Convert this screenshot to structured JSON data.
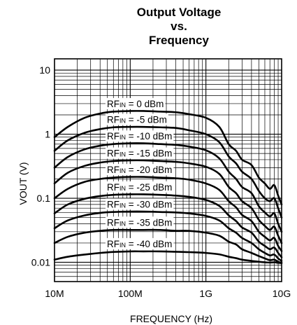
{
  "chart_data": {
    "type": "line",
    "title_lines": [
      "Output Voltage",
      "vs.",
      "Frequency"
    ],
    "xlabel": "FREQUENCY (Hz)",
    "ylabel": "VOUT (V)",
    "x_scale": "log",
    "y_scale": "log",
    "xlim": [
      10000000,
      10000000000
    ],
    "ylim": [
      0.005,
      15
    ],
    "x_ticks": [
      {
        "value": 10000000,
        "label": "10M"
      },
      {
        "value": 100000000,
        "label": "100M"
      },
      {
        "value": 1000000000,
        "label": "1G"
      },
      {
        "value": 10000000000,
        "label": "10G"
      }
    ],
    "y_ticks": [
      {
        "value": 0.01,
        "label": "0.01"
      },
      {
        "value": 0.1,
        "label": "0.1"
      },
      {
        "value": 1,
        "label": "1"
      },
      {
        "value": 10,
        "label": "10"
      }
    ],
    "grid": true,
    "x": [
      10000000,
      15000000,
      25000000,
      40000000,
      60000000,
      100000000,
      150000000,
      250000000,
      400000000,
      600000000,
      1000000000,
      1500000000,
      2000000000,
      2500000000,
      3000000000,
      4000000000,
      5000000000,
      6000000000,
      7000000000,
      8000000000,
      9000000000,
      10000000000
    ],
    "series": [
      {
        "name": "RF_IN = 0 dBm",
        "label_prefix": "RF",
        "label_sub": "IN",
        "label_suffix": " = 0 dBm",
        "values": [
          0.9,
          1.3,
          1.8,
          2.1,
          2.25,
          2.3,
          2.3,
          2.25,
          2.2,
          2.05,
          1.8,
          1.3,
          0.7,
          0.55,
          0.4,
          0.33,
          0.21,
          0.17,
          0.14,
          0.16,
          0.11,
          0.08
        ]
      },
      {
        "name": "RF_IN = -5 dBm",
        "label_prefix": "RF",
        "label_sub": "IN",
        "label_suffix": " = -5 dBm",
        "values": [
          0.55,
          0.8,
          1.05,
          1.2,
          1.28,
          1.3,
          1.3,
          1.28,
          1.25,
          1.15,
          1.0,
          0.75,
          0.45,
          0.35,
          0.26,
          0.2,
          0.13,
          0.1,
          0.09,
          0.1,
          0.07,
          0.05
        ]
      },
      {
        "name": "RF_IN = -10 dBm",
        "label_prefix": "RF",
        "label_sub": "IN",
        "label_suffix": " = -10 dBm",
        "values": [
          0.3,
          0.44,
          0.58,
          0.66,
          0.7,
          0.72,
          0.72,
          0.7,
          0.68,
          0.64,
          0.56,
          0.42,
          0.26,
          0.2,
          0.15,
          0.12,
          0.075,
          0.06,
          0.052,
          0.058,
          0.04,
          0.03
        ]
      },
      {
        "name": "RF_IN = -15 dBm",
        "label_prefix": "RF",
        "label_sub": "IN",
        "label_suffix": " = -15 dBm",
        "values": [
          0.17,
          0.25,
          0.32,
          0.36,
          0.38,
          0.39,
          0.39,
          0.38,
          0.37,
          0.35,
          0.31,
          0.24,
          0.15,
          0.12,
          0.09,
          0.07,
          0.046,
          0.037,
          0.032,
          0.036,
          0.026,
          0.02
        ]
      },
      {
        "name": "RF_IN = -20 dBm",
        "label_prefix": "RF",
        "label_sub": "IN",
        "label_suffix": " = -20 dBm",
        "values": [
          0.1,
          0.14,
          0.18,
          0.2,
          0.21,
          0.215,
          0.215,
          0.21,
          0.205,
          0.195,
          0.17,
          0.135,
          0.09,
          0.072,
          0.055,
          0.044,
          0.03,
          0.025,
          0.022,
          0.024,
          0.018,
          0.015
        ]
      },
      {
        "name": "RF_IN = -25 dBm",
        "label_prefix": "RF",
        "label_sub": "IN",
        "label_suffix": " = -25 dBm",
        "values": [
          0.058,
          0.08,
          0.098,
          0.108,
          0.113,
          0.115,
          0.115,
          0.113,
          0.11,
          0.105,
          0.094,
          0.076,
          0.054,
          0.044,
          0.035,
          0.029,
          0.021,
          0.018,
          0.016,
          0.017,
          0.014,
          0.012
        ]
      },
      {
        "name": "RF_IN = -30 dBm",
        "label_prefix": "RF",
        "label_sub": "IN",
        "label_suffix": " = -30 dBm",
        "values": [
          0.034,
          0.045,
          0.054,
          0.059,
          0.061,
          0.062,
          0.062,
          0.061,
          0.06,
          0.058,
          0.053,
          0.045,
          0.034,
          0.029,
          0.024,
          0.02,
          0.016,
          0.014,
          0.0128,
          0.0132,
          0.0115,
          0.0105
        ]
      },
      {
        "name": "RF_IN = -35 dBm",
        "label_prefix": "RF",
        "label_sub": "IN",
        "label_suffix": " = -35 dBm",
        "values": [
          0.02,
          0.025,
          0.029,
          0.031,
          0.032,
          0.032,
          0.032,
          0.032,
          0.031,
          0.031,
          0.029,
          0.026,
          0.021,
          0.019,
          0.016,
          0.014,
          0.0125,
          0.0115,
          0.0108,
          0.011,
          0.0102,
          0.0098
        ]
      },
      {
        "name": "RF_IN = -40 dBm",
        "label_prefix": "RF",
        "label_sub": "IN",
        "label_suffix": " = -40 dBm",
        "values": [
          0.011,
          0.0122,
          0.0132,
          0.014,
          0.0145,
          0.0148,
          0.0148,
          0.0148,
          0.0146,
          0.0144,
          0.014,
          0.0133,
          0.0122,
          0.0116,
          0.011,
          0.0105,
          0.0102,
          0.01,
          0.0099,
          0.01,
          0.0098,
          0.0097
        ]
      }
    ]
  }
}
